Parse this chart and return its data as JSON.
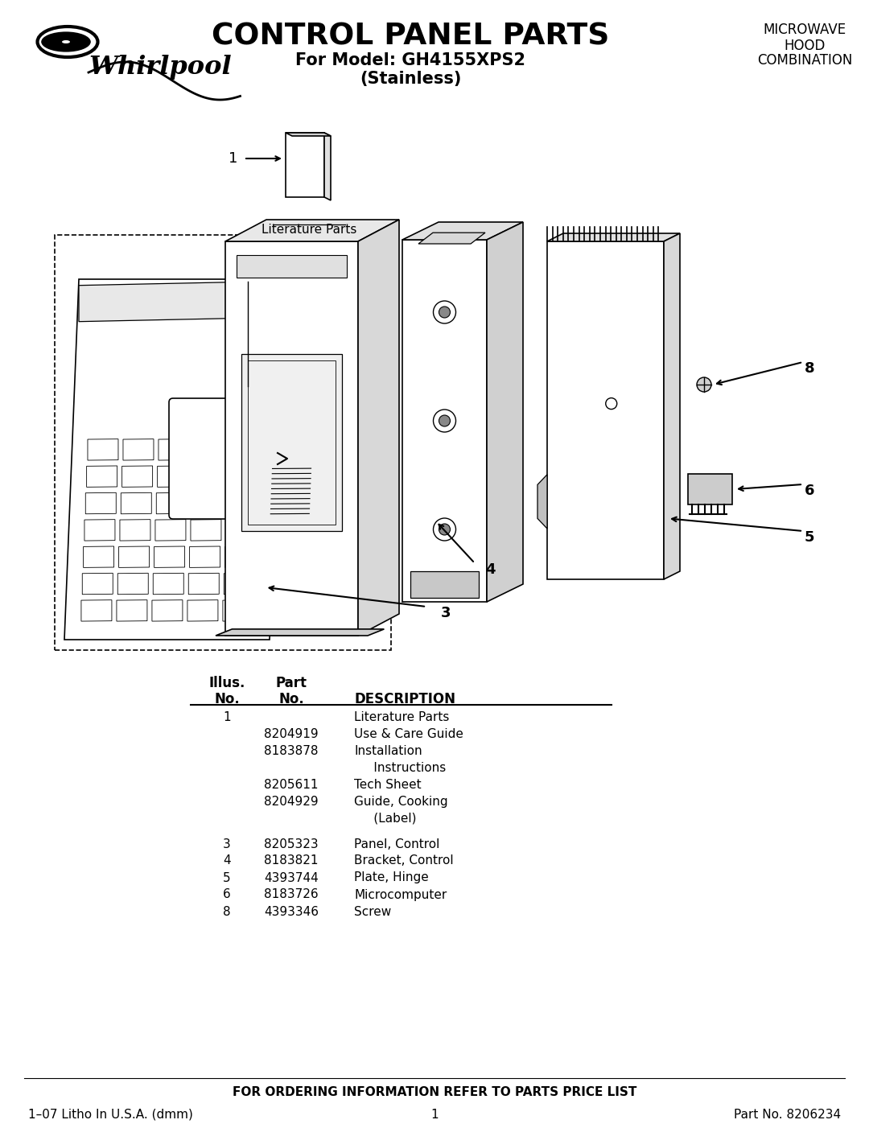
{
  "title": "CONTROL PANEL PARTS",
  "subtitle_line1": "For Model: GH4155XPS2",
  "subtitle_line2": "(Stainless)",
  "top_right_line1": "MICROWAVE",
  "top_right_line2": "HOOD",
  "top_right_line3": "COMBINATION",
  "footer_center": "FOR ORDERING INFORMATION REFER TO PARTS PRICE LIST",
  "footer_left": "1–07 Litho In U.S.A. (dmm)",
  "footer_middle": "1",
  "footer_right": "Part No. 8206234",
  "bg_color": "#ffffff",
  "text_color": "#000000",
  "rows": [
    [
      "1",
      "",
      "Literature Parts"
    ],
    [
      "",
      "8204919",
      "Use & Care Guide"
    ],
    [
      "",
      "8183878",
      "Installation"
    ],
    [
      "",
      "",
      "     Instructions"
    ],
    [
      "",
      "8205611",
      "Tech Sheet"
    ],
    [
      "",
      "8204929",
      "Guide, Cooking"
    ],
    [
      "",
      "",
      "     (Label)"
    ],
    [
      "",
      "",
      ""
    ],
    [
      "3",
      "8205323",
      "Panel, Control"
    ],
    [
      "4",
      "8183821",
      "Bracket, Control"
    ],
    [
      "5",
      "4393744",
      "Plate, Hinge"
    ],
    [
      "6",
      "8183726",
      "Microcomputer"
    ],
    [
      "8",
      "4393346",
      "Screw"
    ]
  ]
}
